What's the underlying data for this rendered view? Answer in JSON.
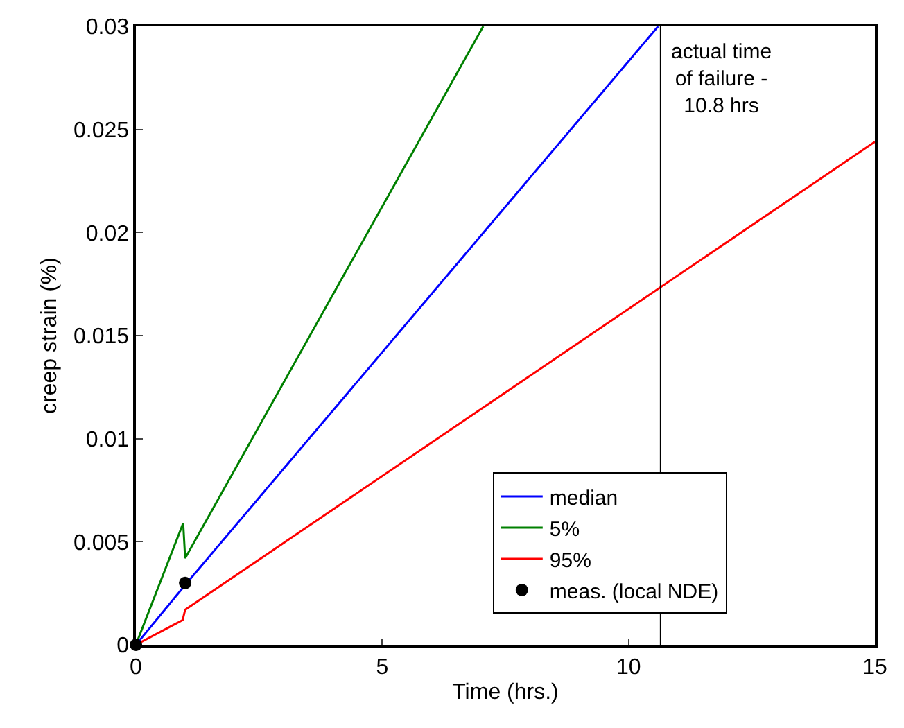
{
  "chart_data": {
    "type": "line",
    "xlabel": "Time (hrs.)",
    "ylabel": "creep strain (%)",
    "xlim": [
      0,
      15
    ],
    "xticks": [
      0,
      5,
      10,
      15
    ],
    "ylim": [
      0,
      0.03
    ],
    "yticks": [
      0,
      0.005,
      0.01,
      0.015,
      0.02,
      0.025,
      0.03
    ],
    "grid": false,
    "legend": "bottom right",
    "line_style": "solid",
    "series": [
      {
        "name": "median",
        "color": "#0000ff",
        "x": [
          0,
          1,
          10.6
        ],
        "values": [
          0,
          0.0029,
          0.03
        ]
      },
      {
        "name": "5%",
        "color": "#008000",
        "x": [
          0,
          0.96,
          1.0,
          7.05
        ],
        "values": [
          0,
          0.0059,
          0.0042,
          0.03
        ]
      },
      {
        "name": "95%",
        "color": "#ff0000",
        "x": [
          0,
          0.95,
          1.0,
          15
        ],
        "values": [
          0,
          0.0012,
          0.0017,
          0.0244
        ]
      },
      {
        "name": "meas. (local NDE)",
        "type": "scatter",
        "marker": "circle",
        "color": "#000000",
        "x": [
          0,
          1
        ],
        "values": [
          0,
          0.003
        ]
      }
    ],
    "ref_lines": [
      {
        "axis": "x",
        "value": 10.65,
        "label": "actual time\nof failure -\n10.8 hrs",
        "color": "#000000"
      }
    ]
  }
}
